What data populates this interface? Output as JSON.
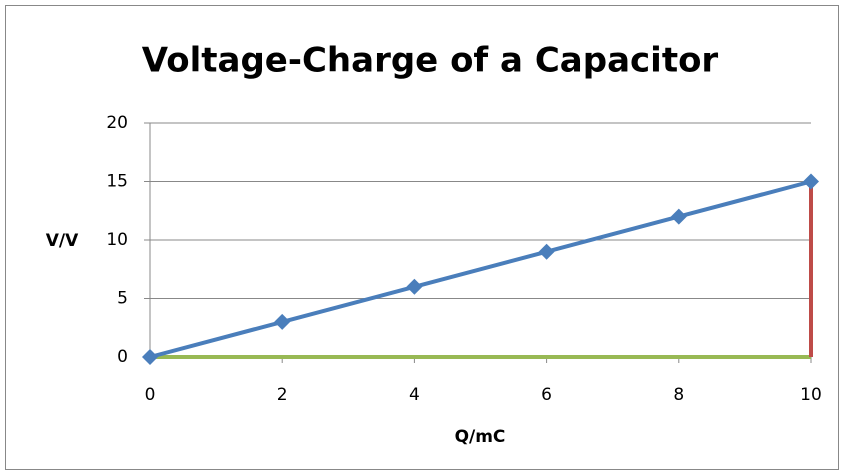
{
  "chart_data": {
    "type": "line",
    "title": "Voltage-Charge of a Capacitor",
    "x_label": "Q/mC",
    "y_label": "V/V",
    "xlim": [
      0,
      10
    ],
    "xticks": [
      0,
      2,
      4,
      6,
      8,
      10
    ],
    "ylim": [
      0,
      20
    ],
    "yticks": [
      0,
      5,
      10,
      15,
      20
    ],
    "grid": true,
    "series": [
      {
        "color": "#98b954",
        "x": [
          0,
          10
        ],
        "values": [
          0,
          0
        ],
        "markers": false
      },
      {
        "color": "#be4b48",
        "x": [
          10,
          10
        ],
        "values": [
          0,
          15
        ],
        "markers": false
      },
      {
        "color": "#4a7ebb",
        "x": [
          0,
          2,
          4,
          6,
          8,
          10
        ],
        "values": [
          0,
          3,
          6,
          9,
          12,
          15
        ],
        "markers": true
      }
    ]
  }
}
